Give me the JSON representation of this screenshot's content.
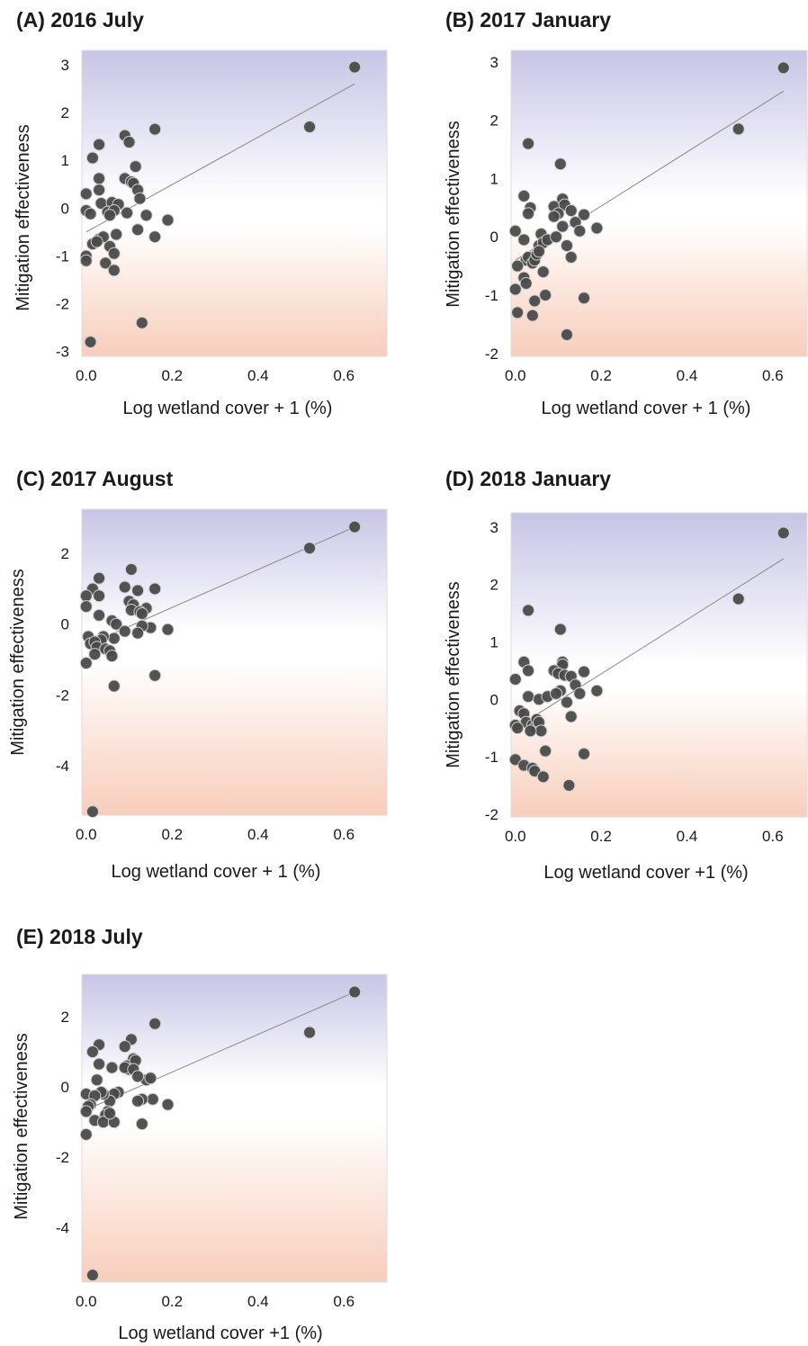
{
  "chart_data": [
    {
      "type": "scatter",
      "title": "(A) 2016 July",
      "xlabel": "Log wetland cover + 1 (%)",
      "ylabel": "Mitigation effectiveness",
      "xlim": [
        -0.01,
        0.7
      ],
      "ylim": [
        -3.1,
        3.3
      ],
      "xticks": [
        "0.0",
        "0.2",
        "0.4",
        "0.6"
      ],
      "yticks": [
        "-3",
        "-2",
        "-1",
        "0",
        "1",
        "2",
        "3"
      ],
      "fit": [
        [
          0,
          -0.5
        ],
        [
          0.625,
          2.6
        ]
      ],
      "x": [
        0.625,
        0.52,
        0.16,
        0.09,
        0.1,
        0.03,
        0.015,
        0.115,
        0.03,
        0.09,
        0.105,
        0.11,
        0.12,
        0.125,
        0.03,
        0.0,
        0.035,
        0.06,
        0.075,
        0.095,
        0.14,
        0.19,
        0.0,
        0.01,
        0.05,
        0.065,
        0.055,
        0.12,
        0.16,
        0.07,
        0.02,
        0.015,
        0.03,
        0.04,
        0.055,
        0.065,
        0.0,
        0.0,
        0.045,
        0.065,
        0.13,
        0.01,
        0.025
      ],
      "y": [
        2.95,
        1.7,
        1.65,
        1.52,
        1.38,
        1.33,
        1.05,
        0.87,
        0.62,
        0.62,
        0.55,
        0.52,
        0.38,
        0.2,
        0.38,
        0.3,
        0.1,
        0.12,
        0.08,
        -0.1,
        -0.15,
        -0.25,
        -0.05,
        -0.12,
        -0.08,
        -0.05,
        -0.15,
        -0.45,
        -0.6,
        -0.55,
        -0.72,
        -0.75,
        -0.65,
        -0.6,
        -0.8,
        -0.95,
        -1.0,
        -1.1,
        -1.15,
        -1.3,
        -2.4,
        -2.8,
        -0.7
      ]
    },
    {
      "type": "scatter",
      "title": "(B) 2017 January",
      "xlabel": "Log wetland cover + 1 (%)",
      "ylabel": "Mitigation effectiveness",
      "xlim": [
        -0.01,
        0.68
      ],
      "ylim": [
        -2.05,
        3.2
      ],
      "xticks": [
        "0.0",
        "0.2",
        "0.4",
        "0.6"
      ],
      "yticks": [
        "-2",
        "-1",
        "0",
        "1",
        "2",
        "3"
      ],
      "fit": [
        [
          0,
          -0.4
        ],
        [
          0.625,
          2.5
        ]
      ],
      "x": [
        0.625,
        0.52,
        0.03,
        0.105,
        0.02,
        0.035,
        0.03,
        0.11,
        0.09,
        0.115,
        0.1,
        0.13,
        0.09,
        0.16,
        0.14,
        0.15,
        0.19,
        0.11,
        0.0,
        0.06,
        0.055,
        0.065,
        0.075,
        0.095,
        0.12,
        0.02,
        0.025,
        0.03,
        0.04,
        0.045,
        0.05,
        0.055,
        0.005,
        0.02,
        0.025,
        0.065,
        0.13,
        0.0,
        0.07,
        0.045,
        0.16,
        0.005,
        0.04,
        0.12
      ],
      "y": [
        2.9,
        1.85,
        1.6,
        1.25,
        0.7,
        0.5,
        0.4,
        0.65,
        0.52,
        0.55,
        0.4,
        0.45,
        0.35,
        0.38,
        0.25,
        0.1,
        0.15,
        0.18,
        0.1,
        0.05,
        -0.15,
        -0.1,
        -0.05,
        0.0,
        -0.15,
        -0.05,
        -0.4,
        -0.35,
        -0.45,
        -0.4,
        -0.3,
        -0.25,
        -0.5,
        -0.7,
        -0.8,
        -0.6,
        -0.35,
        -0.9,
        -1.0,
        -1.1,
        -1.05,
        -1.3,
        -1.35,
        -1.68
      ]
    },
    {
      "type": "scatter",
      "title": "(C) 2017 August",
      "xlabel": "Log wetland cover + 1 (%)",
      "ylabel": "Mitigation effectiveness",
      "xlim": [
        -0.01,
        0.7
      ],
      "ylim": [
        -5.4,
        3.25
      ],
      "xticks": [
        "0.0",
        "0.2",
        "0.4",
        "0.6"
      ],
      "yticks": [
        "-4",
        "-2",
        "0",
        "2"
      ],
      "fit": [
        [
          0,
          -0.6
        ],
        [
          0.625,
          2.75
        ]
      ],
      "x": [
        0.625,
        0.52,
        0.105,
        0.03,
        0.015,
        0.09,
        0.16,
        0.12,
        0.0,
        0.03,
        0.1,
        0.11,
        0.14,
        0.105,
        0.125,
        0.13,
        0.06,
        0.07,
        0.03,
        0.0,
        0.19,
        0.15,
        0.13,
        0.12,
        0.09,
        0.065,
        0.04,
        0.035,
        0.005,
        0.01,
        0.02,
        0.025,
        0.045,
        0.055,
        0.06,
        0.02,
        0.0,
        0.16,
        0.065,
        0.015
      ],
      "y": [
        2.75,
        2.15,
        1.55,
        1.3,
        1.0,
        1.05,
        1.0,
        0.95,
        0.8,
        0.8,
        0.65,
        0.55,
        0.45,
        0.4,
        0.35,
        0.3,
        0.1,
        0.0,
        0.25,
        0.5,
        -0.15,
        -0.1,
        -0.05,
        -0.25,
        -0.2,
        -0.4,
        -0.35,
        -0.45,
        -0.35,
        -0.55,
        -0.5,
        -0.65,
        -0.7,
        -0.75,
        -0.9,
        -0.85,
        -1.1,
        -1.45,
        -1.75,
        -5.3
      ]
    },
    {
      "type": "scatter",
      "title": "(D) 2018 January",
      "xlabel": "Log wetland cover +1 (%)",
      "ylabel": "Mitigation effectiveness",
      "xlim": [
        -0.01,
        0.68
      ],
      "ylim": [
        -2.05,
        3.25
      ],
      "xticks": [
        "0.0",
        "0.2",
        "0.4",
        "0.6"
      ],
      "yticks": [
        "-2",
        "-1",
        "0",
        "1",
        "2",
        "3"
      ],
      "fit": [
        [
          0,
          -0.5
        ],
        [
          0.625,
          2.45
        ]
      ],
      "x": [
        0.625,
        0.52,
        0.03,
        0.105,
        0.11,
        0.02,
        0.11,
        0.09,
        0.1,
        0.115,
        0.13,
        0.03,
        0.16,
        0.0,
        0.14,
        0.15,
        0.19,
        0.105,
        0.03,
        0.055,
        0.075,
        0.095,
        0.12,
        0.01,
        0.02,
        0.025,
        0.04,
        0.045,
        0.05,
        0.055,
        0.06,
        0.0,
        0.005,
        0.035,
        0.13,
        0.07,
        0.16,
        0.0,
        0.02,
        0.04,
        0.045,
        0.065,
        0.125
      ],
      "y": [
        2.9,
        1.75,
        1.55,
        1.22,
        0.65,
        0.65,
        0.6,
        0.5,
        0.45,
        0.42,
        0.4,
        0.5,
        0.48,
        0.35,
        0.25,
        0.1,
        0.15,
        0.15,
        0.05,
        0.0,
        0.05,
        0.1,
        -0.05,
        -0.2,
        -0.25,
        -0.4,
        -0.45,
        -0.5,
        -0.35,
        -0.4,
        -0.55,
        -0.45,
        -0.5,
        -0.55,
        -0.3,
        -0.9,
        -0.95,
        -1.05,
        -1.15,
        -1.2,
        -1.25,
        -1.35,
        -1.5
      ]
    },
    {
      "type": "scatter",
      "title": "(E) 2018 July",
      "xlabel": "Log wetland cover +1 (%)",
      "ylabel": "Mitigation effectiveness",
      "xlim": [
        -0.01,
        0.7
      ],
      "ylim": [
        -5.55,
        3.2
      ],
      "xticks": [
        "0.0",
        "0.2",
        "0.4",
        "0.6"
      ],
      "yticks": [
        "-4",
        "-2",
        "0",
        "2"
      ],
      "fit": [
        [
          0,
          -0.65
        ],
        [
          0.625,
          2.7
        ]
      ],
      "x": [
        0.625,
        0.52,
        0.16,
        0.105,
        0.03,
        0.015,
        0.09,
        0.11,
        0.095,
        0.1,
        0.115,
        0.03,
        0.06,
        0.09,
        0.14,
        0.15,
        0.11,
        0.12,
        0.025,
        0.0,
        0.19,
        0.155,
        0.13,
        0.12,
        0.075,
        0.065,
        0.055,
        0.04,
        0.035,
        0.02,
        0.01,
        0.005,
        0.05,
        0.045,
        0.0,
        0.02,
        0.04,
        0.065,
        0.13,
        0.0,
        0.015,
        0.055
      ],
      "y": [
        2.7,
        1.55,
        1.8,
        1.35,
        1.2,
        1.0,
        1.15,
        0.8,
        0.6,
        0.5,
        0.75,
        0.65,
        0.55,
        0.55,
        0.2,
        0.25,
        0.5,
        0.3,
        0.2,
        -0.2,
        -0.5,
        -0.35,
        -0.35,
        -0.4,
        -0.15,
        -0.2,
        -0.4,
        -0.2,
        -0.15,
        -0.25,
        -0.5,
        -0.55,
        -0.7,
        -0.8,
        -0.7,
        -0.95,
        -1.0,
        -1.0,
        -1.05,
        -1.35,
        -5.35,
        -0.75
      ]
    }
  ]
}
